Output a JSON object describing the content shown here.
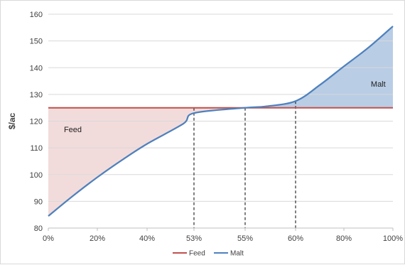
{
  "chart_data": {
    "type": "line",
    "ylabel": "$/ac",
    "xlabel": "",
    "ylim": [
      80,
      160
    ],
    "yticks": [
      80,
      90,
      100,
      110,
      120,
      130,
      140,
      150,
      160
    ],
    "x_tick_labels": [
      "0%",
      "20%",
      "40%",
      "53%",
      "55%",
      "60%",
      "80%",
      "100%"
    ],
    "x_tick_values": [
      0,
      20,
      40,
      53,
      55,
      60,
      80,
      100
    ],
    "grid": "horizontal",
    "legend_position": "bottom",
    "series": [
      {
        "name": "Feed",
        "color": "#c0504d",
        "x": [
          0,
          100
        ],
        "values": [
          125,
          125
        ]
      },
      {
        "name": "Malt",
        "color": "#4f81bd",
        "x": [
          0,
          10,
          20,
          30,
          40,
          50,
          53,
          55,
          57,
          60,
          70,
          80,
          90,
          100
        ],
        "values": [
          84.5,
          92,
          99,
          105.5,
          111.5,
          119,
          123,
          125,
          125.5,
          127.5,
          133.5,
          140.5,
          147.5,
          155.5
        ]
      }
    ],
    "reference_lines_x": [
      53,
      55,
      60
    ],
    "annotations": [
      {
        "text": "Feed",
        "x": 10,
        "y": 117,
        "color": "#f2dcdb"
      },
      {
        "text": "Malt",
        "x": 94,
        "y": 134,
        "color": "#b9cde5"
      }
    ]
  }
}
